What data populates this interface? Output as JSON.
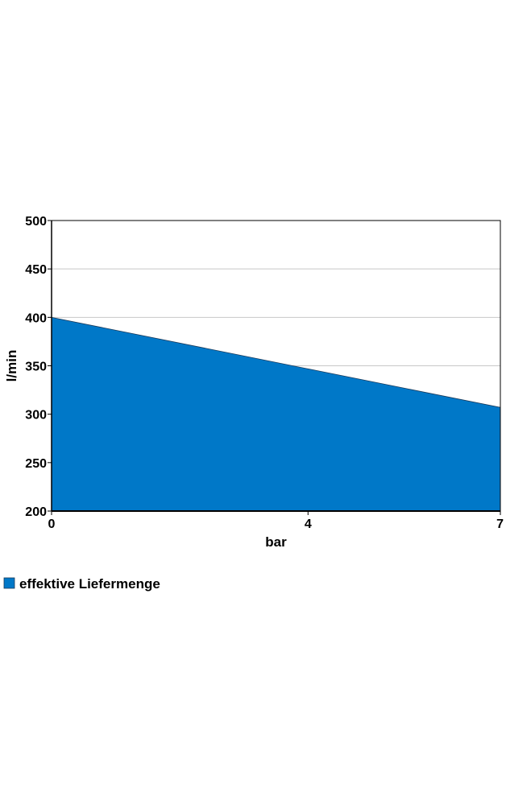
{
  "chart_data": {
    "type": "area",
    "x": [
      0,
      7
    ],
    "series": [
      {
        "name": "effektive Liefermenge",
        "values": [
          400,
          307
        ],
        "color": "#0078c8"
      }
    ],
    "xlabel": "bar",
    "ylabel": "l/min",
    "xlim": [
      0,
      7
    ],
    "ylim": [
      200,
      500
    ],
    "x_ticks": [
      "0",
      "4",
      "7"
    ],
    "x_tick_values": [
      0,
      4,
      7
    ],
    "y_ticks": [
      "200",
      "250",
      "300",
      "350",
      "400",
      "450",
      "500"
    ],
    "y_tick_values": [
      200,
      250,
      300,
      350,
      400,
      450,
      500
    ],
    "grid": true,
    "legend_position": "bottom-left"
  },
  "colors": {
    "area_fill": "#0078c8",
    "grid": "#c8c8c8",
    "frame": "#000000"
  }
}
